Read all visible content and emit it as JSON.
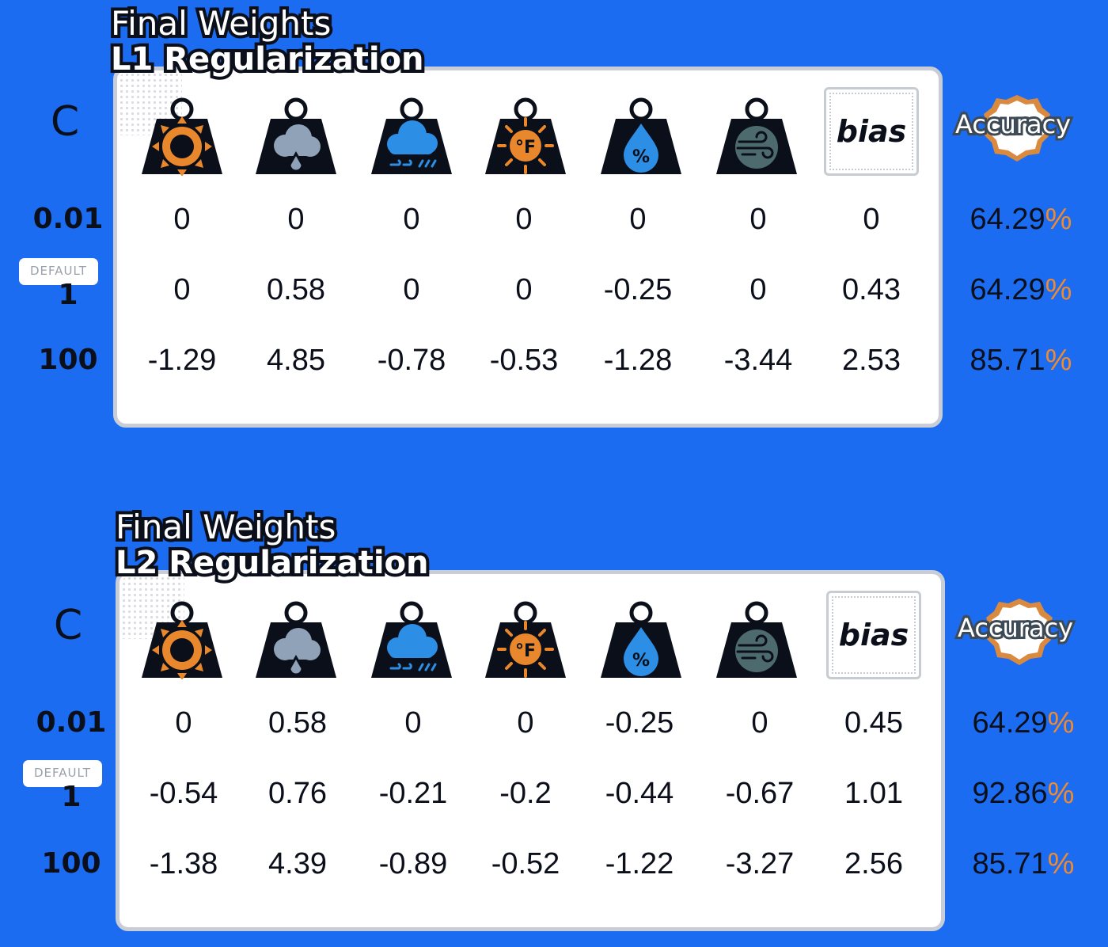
{
  "accent_color": "#1c6cf2",
  "percent_color": "#f08a2e",
  "c_header": "C",
  "default_label": "DEFAULT",
  "bias_label": "bias",
  "accuracy_label": "Accuracy",
  "feature_icons": [
    "sun-weight-icon",
    "hail-cloud-weight-icon",
    "rain-cloud-weight-icon",
    "temperature-weight-icon",
    "humidity-weight-icon",
    "wind-weight-icon"
  ],
  "sections": [
    {
      "title": "Final Weights",
      "subtitle": "L1 Regularization",
      "rows": [
        {
          "c": "0.01",
          "weights": [
            "0",
            "0",
            "0",
            "0",
            "0",
            "0",
            "0"
          ],
          "accuracy": "64.29",
          "pct": "%"
        },
        {
          "c": "1",
          "weights": [
            "0",
            "0.58",
            "0",
            "0",
            "-0.25",
            "0",
            "0.43"
          ],
          "accuracy": "64.29",
          "pct": "%"
        },
        {
          "c": "100",
          "weights": [
            "-1.29",
            "4.85",
            "-0.78",
            "-0.53",
            "-1.28",
            "-3.44",
            "2.53"
          ],
          "accuracy": "85.71",
          "pct": "%"
        }
      ]
    },
    {
      "title": "Final Weights",
      "subtitle": "L2 Regularization",
      "rows": [
        {
          "c": "0.01",
          "weights": [
            "0",
            "0.58",
            "0",
            "0",
            "-0.25",
            "0",
            "0.45"
          ],
          "accuracy": "64.29",
          "pct": "%"
        },
        {
          "c": "1",
          "weights": [
            "-0.54",
            "0.76",
            "-0.21",
            "-0.2",
            "-0.44",
            "-0.67",
            "1.01"
          ],
          "accuracy": "92.86",
          "pct": "%"
        },
        {
          "c": "100",
          "weights": [
            "-1.38",
            "4.39",
            "-0.89",
            "-0.52",
            "-1.22",
            "-3.27",
            "2.56"
          ],
          "accuracy": "85.71",
          "pct": "%"
        }
      ]
    }
  ]
}
